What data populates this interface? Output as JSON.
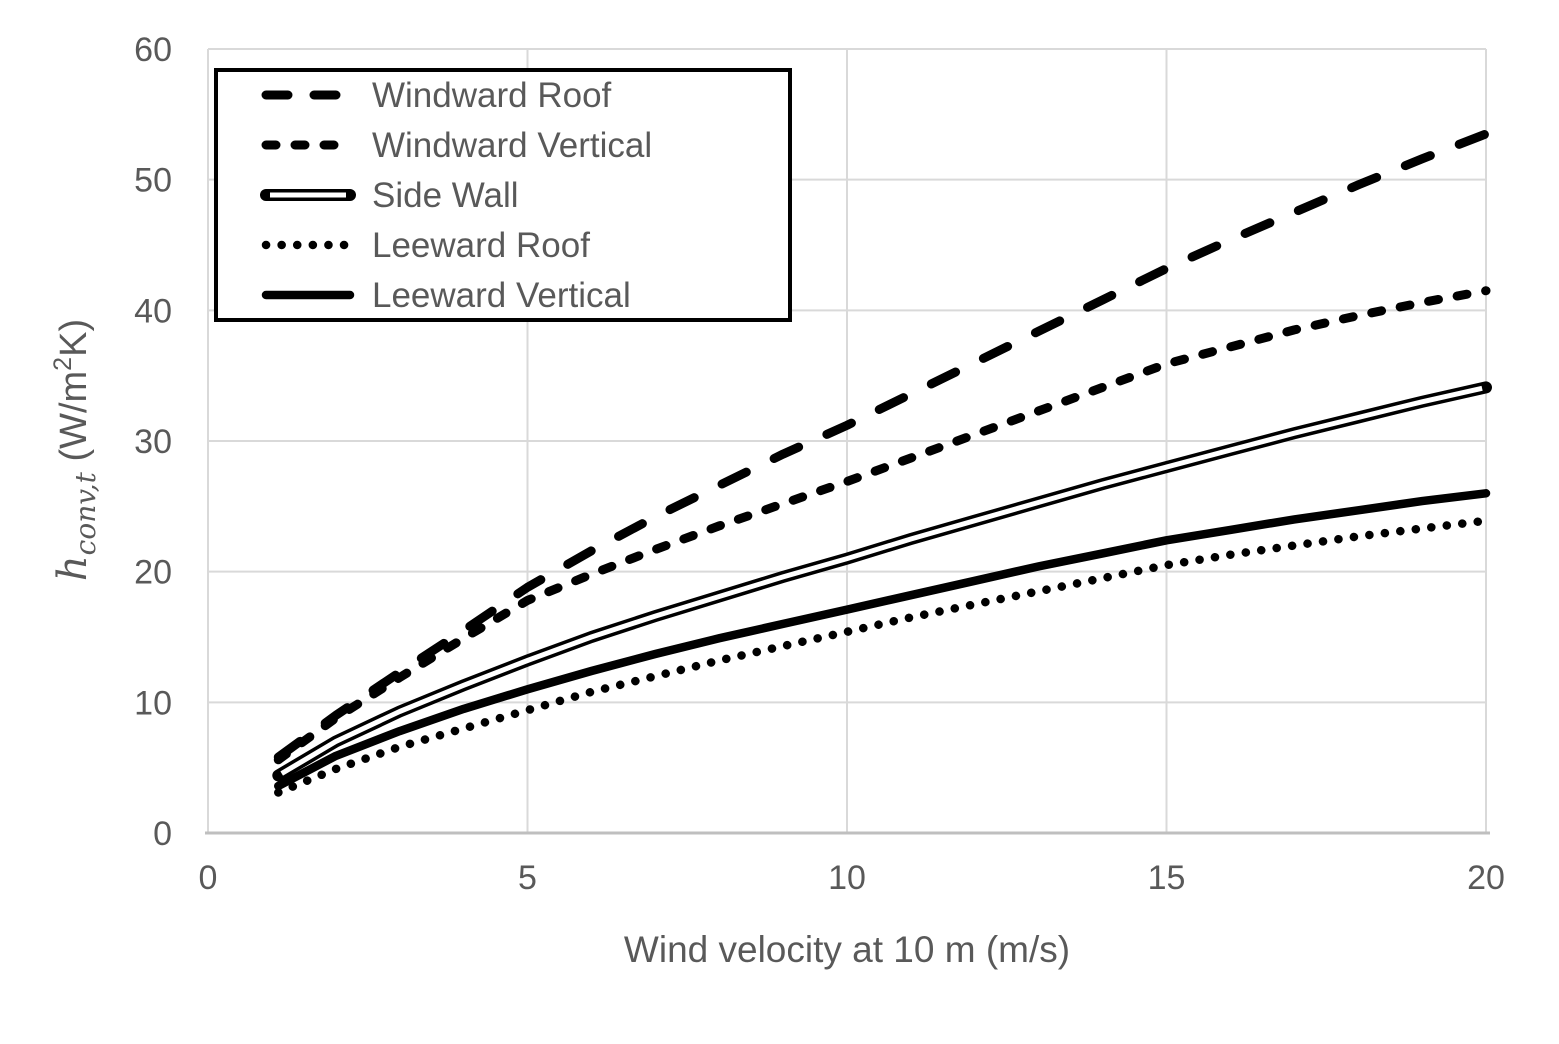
{
  "figure": {
    "background": "#ffffff",
    "text_color": "#595959",
    "gridline_color": "#d9d9d9",
    "axis_line_color": "#bfbfbf",
    "series_color": "#000000",
    "legend_border_color": "#000000",
    "legend_fill": "#ffffff"
  },
  "chart_data": {
    "type": "line",
    "title": "",
    "xlabel": "Wind velocity at 10 m (m/s)",
    "ylabel": "h_conv,t (W/m2K)",
    "ylabel_parts": {
      "var": "h",
      "sub": "conv,t",
      "unit_open": " (W/m",
      "unit_sup": "2",
      "unit_close": "K)"
    },
    "xlim": [
      0,
      20
    ],
    "ylim": [
      0,
      60
    ],
    "x_ticks": [
      0,
      5,
      10,
      15,
      20
    ],
    "y_ticks": [
      0,
      10,
      20,
      30,
      40,
      50,
      60
    ],
    "grid": true,
    "legend_position": "top-left",
    "x": [
      1.1,
      2,
      3,
      4,
      5,
      6,
      7,
      8,
      9,
      10,
      11,
      12,
      13,
      14,
      15,
      16,
      17,
      18,
      19,
      20
    ],
    "series": [
      {
        "name": "Windward Roof",
        "style": "long-dash",
        "values": [
          5.8,
          9.0,
          12.3,
          15.5,
          18.8,
          21.6,
          24.2,
          26.6,
          29.0,
          31.2,
          33.6,
          36.0,
          38.4,
          40.8,
          43.2,
          45.4,
          47.5,
          49.6,
          51.6,
          53.5
        ]
      },
      {
        "name": "Windward Vertical",
        "style": "short-dash",
        "values": [
          5.6,
          8.8,
          11.9,
          14.9,
          17.8,
          19.8,
          21.7,
          23.5,
          25.2,
          26.9,
          28.7,
          30.5,
          32.3,
          34.1,
          35.9,
          37.2,
          38.5,
          39.6,
          40.6,
          41.5
        ]
      },
      {
        "name": "Side Wall",
        "style": "double",
        "values": [
          4.4,
          7.0,
          9.3,
          11.3,
          13.2,
          15.0,
          16.6,
          18.1,
          19.6,
          21.0,
          22.5,
          23.9,
          25.3,
          26.7,
          28.0,
          29.3,
          30.6,
          31.8,
          33.0,
          34.1
        ]
      },
      {
        "name": "Leeward Roof",
        "style": "dotted",
        "values": [
          3.1,
          4.9,
          6.6,
          8.0,
          9.4,
          10.8,
          12.0,
          13.2,
          14.3,
          15.4,
          16.5,
          17.5,
          18.5,
          19.5,
          20.5,
          21.3,
          22.0,
          22.7,
          23.3,
          23.9
        ]
      },
      {
        "name": "Leeward Vertical",
        "style": "solid",
        "values": [
          3.6,
          5.9,
          7.8,
          9.5,
          11.0,
          12.4,
          13.7,
          14.9,
          16.0,
          17.1,
          18.2,
          19.3,
          20.4,
          21.4,
          22.4,
          23.2,
          24.0,
          24.7,
          25.4,
          26.0
        ]
      }
    ]
  }
}
